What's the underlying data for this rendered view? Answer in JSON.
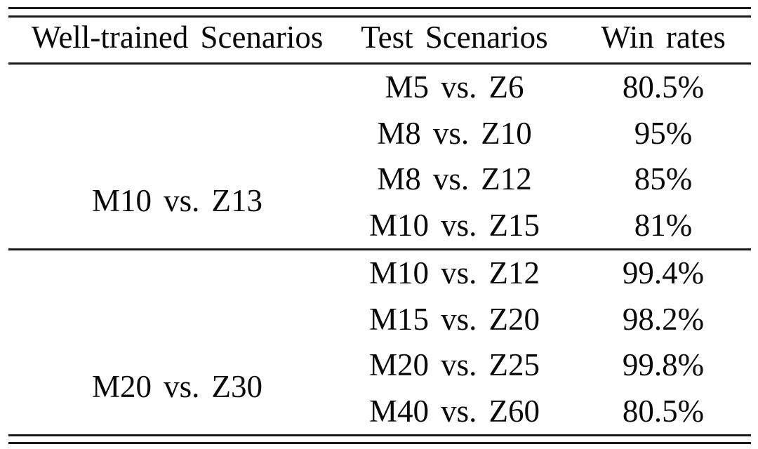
{
  "table": {
    "columns": [
      "Well-trained Scenarios",
      "Test Scenarios",
      "Win rates"
    ],
    "groups": [
      {
        "well_trained": "M10 vs. Z13",
        "rows": [
          {
            "test": "M5 vs. Z6",
            "win_rate": "80.5%"
          },
          {
            "test": "M8 vs. Z10",
            "win_rate": "95%"
          },
          {
            "test": "M8 vs. Z12",
            "win_rate": "85%"
          },
          {
            "test": "M10 vs. Z15",
            "win_rate": "81%"
          }
        ]
      },
      {
        "well_trained": "M20 vs. Z30",
        "rows": [
          {
            "test": "M10 vs. Z12",
            "win_rate": "99.4%"
          },
          {
            "test": "M15 vs. Z20",
            "win_rate": "98.2%"
          },
          {
            "test": "M20 vs. Z25",
            "win_rate": "99.8%"
          },
          {
            "test": "M40 vs. Z60",
            "win_rate": "80.5%"
          }
        ]
      }
    ]
  },
  "style": {
    "rule_color": "#1a1a1a",
    "text_color": "#0a0a0a",
    "background": "#ffffff"
  },
  "chart_data": {
    "type": "table",
    "title": "",
    "columns": [
      "Well-trained Scenarios",
      "Test Scenarios",
      "Win rates"
    ],
    "rows": [
      [
        "M10 vs. Z13",
        "M5 vs. Z6",
        "80.5%"
      ],
      [
        "M10 vs. Z13",
        "M8 vs. Z10",
        "95%"
      ],
      [
        "M10 vs. Z13",
        "M8 vs. Z12",
        "85%"
      ],
      [
        "M10 vs. Z13",
        "M10 vs. Z15",
        "81%"
      ],
      [
        "M20 vs. Z30",
        "M10 vs. Z12",
        "99.4%"
      ],
      [
        "M20 vs. Z30",
        "M15 vs. Z20",
        "98.2%"
      ],
      [
        "M20 vs. Z30",
        "M20 vs. Z25",
        "99.8%"
      ],
      [
        "M20 vs. Z30",
        "M40 vs. Z60",
        "80.5%"
      ]
    ]
  }
}
